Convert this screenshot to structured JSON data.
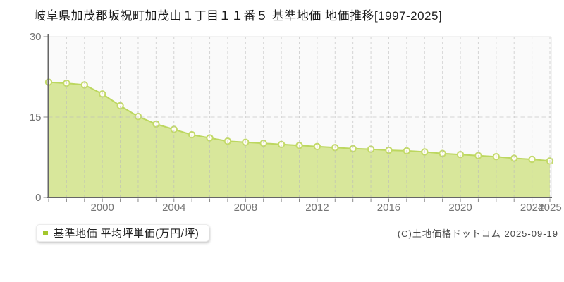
{
  "title": "岐阜県加茂郡坂祝町加茂山１丁目１１番５ 基準地価 地価推移[1997-2025]",
  "legend": {
    "label": "基準地価 平均坪単価(万円/坪)"
  },
  "copyright": "(C)土地価格ドットコム 2025-09-19",
  "colors": {
    "area_fill": "#d8e79b",
    "line": "#bcd75f",
    "marker_fill": "#fffdf2",
    "marker_stroke": "#c3da69",
    "legend_square": "#a3c72d",
    "plot_bg": "#fafafa",
    "plot_border": "#e4e4e4",
    "grid": "#bbbbbb",
    "axis": "#666666",
    "tick": "#8a8a8a",
    "tick_label": "#757575"
  },
  "chart_data": {
    "type": "area",
    "title": "岐阜県加茂郡坂祝町加茂山１丁目１１番５ 基準地価 地価推移[1997-2025]",
    "series_name": "基準地価 平均坪単価(万円/坪)",
    "unit": "万円/坪",
    "x": [
      1997,
      1998,
      1999,
      2000,
      2001,
      2002,
      2003,
      2004,
      2005,
      2006,
      2007,
      2008,
      2009,
      2010,
      2011,
      2012,
      2013,
      2014,
      2015,
      2016,
      2017,
      2018,
      2019,
      2020,
      2021,
      2022,
      2023,
      2024,
      2025
    ],
    "values": [
      21.5,
      21.3,
      21.0,
      19.3,
      17.1,
      15.1,
      13.7,
      12.7,
      11.7,
      11.1,
      10.5,
      10.3,
      10.1,
      9.9,
      9.7,
      9.5,
      9.3,
      9.1,
      9.0,
      8.8,
      8.7,
      8.5,
      8.2,
      8.0,
      7.8,
      7.6,
      7.3,
      7.1,
      6.8
    ],
    "ylim": [
      0,
      30
    ],
    "yticks": [
      0,
      15,
      30
    ],
    "xtick_labels": [
      "2000",
      "2004",
      "2008",
      "2012",
      "2016",
      "2020",
      "2024",
      "2025"
    ],
    "grid": {
      "vertical": "dashed-every-year",
      "horizontal_lines": [
        15
      ]
    },
    "legend_position": "bottom-left"
  }
}
